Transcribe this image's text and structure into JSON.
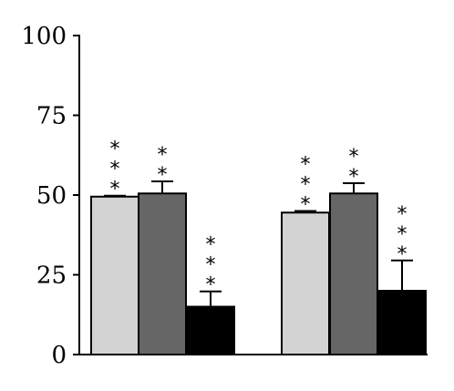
{
  "chart_data": {
    "type": "bar",
    "title": "",
    "xlabel": "",
    "ylabel": "",
    "ylim": [
      0,
      100
    ],
    "yticks": [
      "0",
      "25",
      "50",
      "75",
      "100"
    ],
    "grid": false,
    "legend": "none",
    "groups": [
      {
        "bars": [
          {
            "value": 49.5,
            "error": 0.3,
            "color": "#d3d3d3",
            "annotation": "***"
          },
          {
            "value": 50.5,
            "error": 3.8,
            "color": "#666666",
            "annotation": "**"
          },
          {
            "value": 15.0,
            "error": 4.8,
            "color": "#000000",
            "annotation": "***"
          }
        ]
      },
      {
        "bars": [
          {
            "value": 44.5,
            "error": 0.5,
            "color": "#d3d3d3",
            "annotation": "***"
          },
          {
            "value": 50.5,
            "error": 3.2,
            "color": "#666666",
            "annotation": "**"
          },
          {
            "value": 20.0,
            "error": 9.5,
            "color": "#000000",
            "annotation": "***"
          }
        ]
      }
    ]
  }
}
